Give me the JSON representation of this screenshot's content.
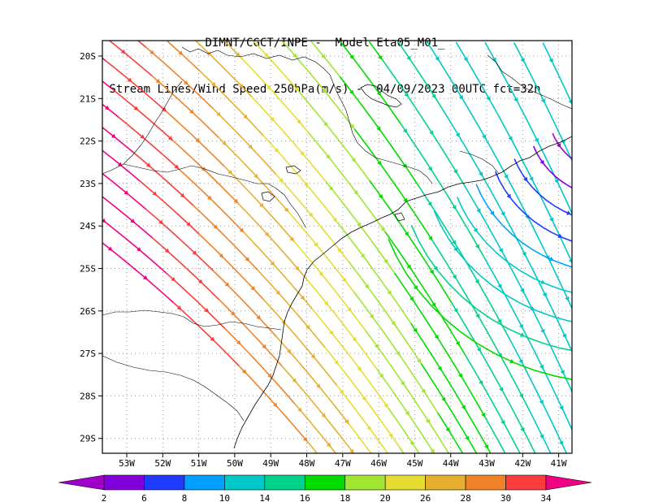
{
  "title": {
    "line1": "DIMNT/CGCT/INPE -  Model Eta05_M01_",
    "line2": "Stream Lines/Wind Speed 250hPa(m/s) -  04/09/2023 00UTC fct=32h"
  },
  "map": {
    "lat_labels": [
      "20S",
      "21S",
      "22S",
      "23S",
      "24S",
      "25S",
      "26S",
      "27S",
      "28S",
      "29S"
    ],
    "lon_labels": [
      "53W",
      "52W",
      "51W",
      "50W",
      "49W",
      "48W",
      "47W",
      "46W",
      "45W",
      "44W",
      "43W",
      "42W",
      "41W"
    ],
    "lat_range": [
      -29.5,
      -19.5
    ],
    "lon_range": [
      -53.6,
      -40.6
    ],
    "grid": "dotted",
    "field": "streamlines colored by wind speed, flow from northwest to southeast"
  },
  "colorbar": {
    "labels": [
      "2",
      "6",
      "8",
      "10",
      "14",
      "16",
      "18",
      "20",
      "26",
      "28",
      "30",
      "34"
    ],
    "colors": [
      "#a000c8",
      "#8200dc",
      "#1e3cff",
      "#00a0ff",
      "#00c8c8",
      "#00d28c",
      "#00dc00",
      "#a0e632",
      "#e6dc32",
      "#e6af2d",
      "#f08228",
      "#fa3c3c",
      "#f00082"
    ]
  }
}
